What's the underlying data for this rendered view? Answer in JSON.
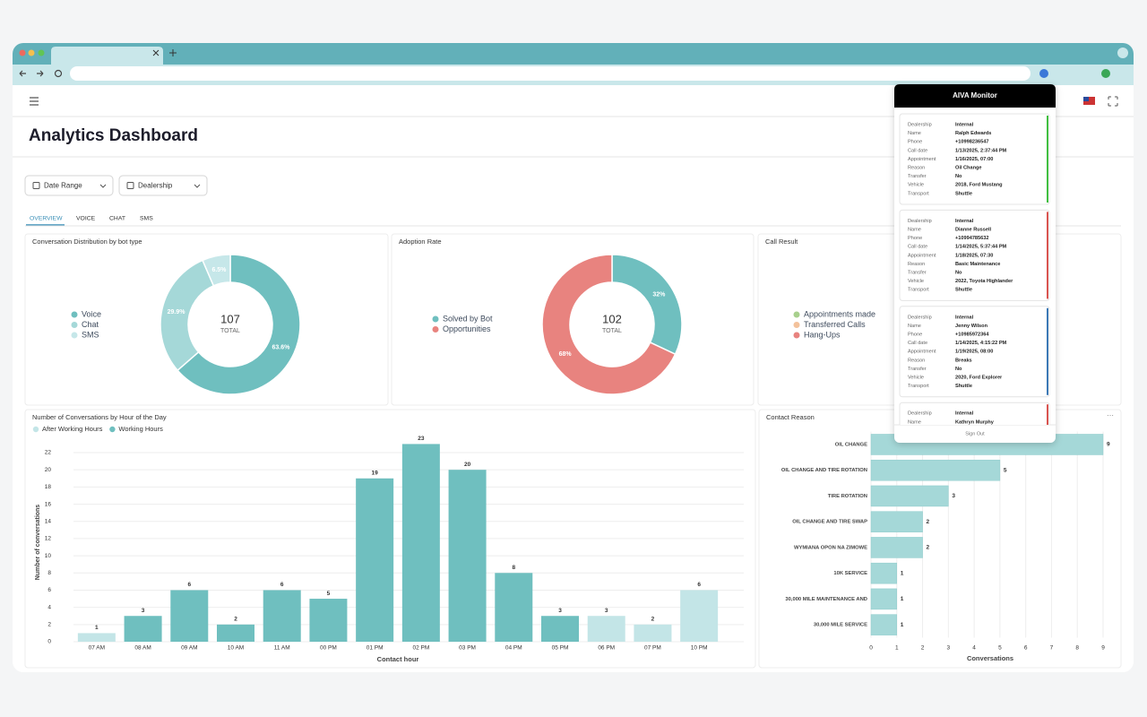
{
  "header": {
    "title": "Analytics Dashboard"
  },
  "filters": [
    "Date Range",
    "Dealership"
  ],
  "tabs": [
    "OVERVIEW",
    "VOICE",
    "CHAT",
    "SMS"
  ],
  "chart_data": [
    {
      "type": "donut",
      "title": "Conversation Distribution by bot type",
      "categories": [
        "Voice",
        "Chat",
        "SMS"
      ],
      "values": [
        63.6,
        29.9,
        6.5
      ],
      "value_labels": [
        "63.6%",
        "29.9%",
        "6.5%"
      ],
      "colors": [
        "#6fbfbf",
        "#a5d8d8",
        "#c6e7e9"
      ],
      "total": 107,
      "total_label": "TOTAL"
    },
    {
      "type": "donut",
      "title": "Adoption Rate",
      "categories": [
        "Solved by Bot",
        "Opportunities"
      ],
      "values": [
        32,
        68
      ],
      "value_labels": [
        "32%",
        "68%"
      ],
      "colors": [
        "#6fbfbf",
        "#e8837f"
      ],
      "total": 102,
      "total_label": "TOTAL"
    },
    {
      "type": "donut",
      "title": "Call Result",
      "categories": [
        "Appointments made",
        "Transferred Calls",
        "Hang-Ups"
      ],
      "colors": [
        "#a8d08d",
        "#f3c29c",
        "#e8837f"
      ]
    },
    {
      "type": "bar",
      "title": "Number of Conversations by Hour of the Day",
      "categories": [
        "07 AM",
        "08 AM",
        "09 AM",
        "10 AM",
        "11 AM",
        "00 PM",
        "01 PM",
        "02 PM",
        "03 PM",
        "04 PM",
        "05 PM",
        "06 PM",
        "07 PM",
        "10 PM"
      ],
      "series": [
        {
          "name": "After Working Hours",
          "color": "#c3e5e7",
          "values": [
            1,
            null,
            null,
            null,
            null,
            null,
            null,
            null,
            null,
            null,
            null,
            3,
            2,
            6
          ]
        },
        {
          "name": "Working Hours",
          "color": "#6fbfbf",
          "values": [
            null,
            3,
            6,
            2,
            6,
            5,
            19,
            23,
            20,
            8,
            3,
            null,
            null,
            null
          ]
        }
      ],
      "ylim": [
        0,
        23
      ],
      "yticks": [
        0,
        2,
        4,
        6,
        8,
        10,
        12,
        14,
        16,
        18,
        20,
        22
      ],
      "xlabel": "Contact hour",
      "ylabel": "Number of conversations",
      "grid": true
    },
    {
      "type": "hbar",
      "title": "Contact Reason",
      "categories": [
        "OIL CHANGE",
        "OIL CHANGE AND TIRE ROTATION",
        "TIRE ROTATION",
        "OIL CHANGE AND TIRE SWAP",
        "WYMIANA OPON NA ZIMOWE",
        "10K SERVICE",
        "30,000 MILE MAINTENANCE AND",
        "30,000 MILE SERVICE"
      ],
      "values": [
        9,
        5,
        3,
        2,
        2,
        1,
        1,
        1
      ],
      "color": "#a5d8d8",
      "xlim": [
        0,
        9
      ],
      "xticks": [
        0,
        1,
        2,
        3,
        4,
        5,
        6,
        7,
        8,
        9
      ],
      "xlabel": "Conversations",
      "grid": true
    }
  ],
  "monitor": {
    "title": "AIVA Monitor",
    "field_labels": [
      "Dealership",
      "Name",
      "Phone",
      "Call date",
      "Appointment",
      "Reason",
      "Transfer",
      "Vehicle",
      "Transport"
    ],
    "records": [
      {
        "color": "#3fbf3f",
        "values": [
          "Internal",
          "Ralph Edwards",
          "+10998236547",
          "1/13/2025, 2:37:44 PM",
          "1/16/2025, 07:00",
          "Oil Change",
          "No",
          "2018, Ford Mustang",
          "Shuttle"
        ]
      },
      {
        "color": "#d9534f",
        "values": [
          "Internal",
          "Dianne Russell",
          "+10994785632",
          "1/14/2025, 5:37:44 PM",
          "1/18/2025, 07:30",
          "Basic Maintenance",
          "No",
          "2022, Toyota Highlander",
          "Shuttle"
        ]
      },
      {
        "color": "#3b78b5",
        "values": [
          "Internal",
          "Jenny Wilson",
          "+10985972364",
          "1/14/2025, 4:15:22 PM",
          "1/19/2025, 08:00",
          "Breaks",
          "No",
          "2020, Ford Explorer",
          "Shuttle"
        ]
      },
      {
        "color": "#d9534f",
        "values": [
          "Internal",
          "Kathryn Murphy"
        ]
      }
    ],
    "sign_out": "Sign Out"
  }
}
